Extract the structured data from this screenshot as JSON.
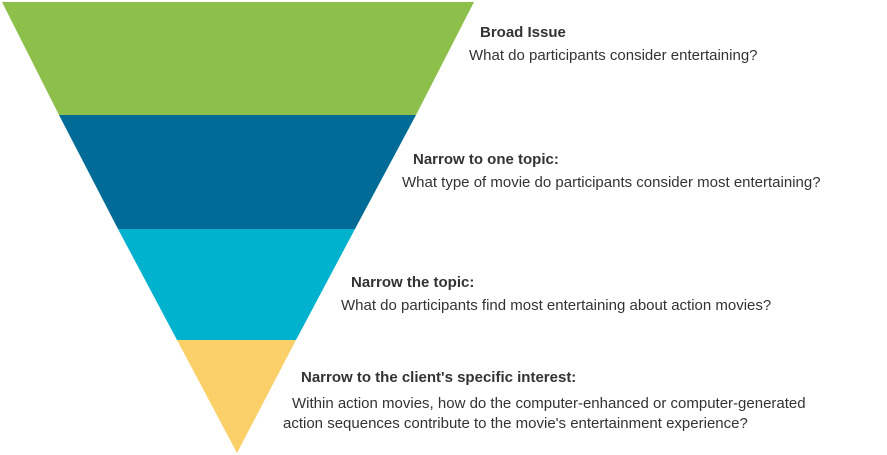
{
  "stages": [
    {
      "title": "Broad Issue",
      "description": "What do participants consider entertaining?",
      "color": "#8DC04A"
    },
    {
      "title": "Narrow to one topic:",
      "description": "What type of movie do participants consider most entertaining?",
      "color": "#006B96"
    },
    {
      "title": "Narrow the topic:",
      "description": "What do participants find most entertaining about action movies?",
      "color": "#00B2CE"
    },
    {
      "title": "Narrow to the client's specific interest:",
      "description_lines": [
        "Within action movies, how do the computer-enhanced or computer-generated",
        "action sequences contribute to the movie's entertainment experience?"
      ],
      "color": "#FCD068"
    }
  ]
}
